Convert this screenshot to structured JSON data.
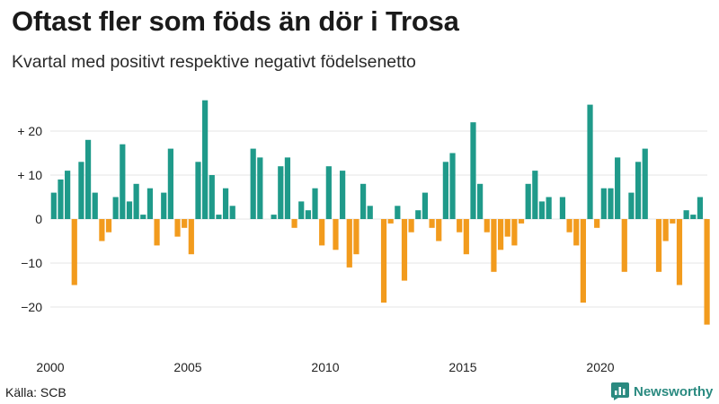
{
  "title": "Oftast fler som föds än dör i Trosa",
  "subtitle": "Kvartal med positivt respektive negativt födelsenetto",
  "source": "Källa: SCB",
  "brand": {
    "name": "Newsworthy",
    "icon": "bar-chart-icon"
  },
  "colors": {
    "positive": "#1f9a8a",
    "negative": "#f29b1d",
    "grid": "#e6e6e6",
    "axis_text": "#222222"
  },
  "chart_data": {
    "type": "bar",
    "title": "Oftast fler som föds än dör i Trosa",
    "subtitle": "Kvartal med positivt respektive negativt födelsenetto",
    "xlabel": "",
    "ylabel": "",
    "start_year": 2000,
    "ylim": [
      -25,
      30
    ],
    "yticks": [
      {
        "value": 20,
        "label": "+ 20"
      },
      {
        "value": 10,
        "label": "+ 10"
      },
      {
        "value": 0,
        "label": "0"
      },
      {
        "value": -10,
        "label": "−10"
      },
      {
        "value": -20,
        "label": "−20"
      }
    ],
    "xticks": [
      {
        "value": 2000,
        "label": "2000"
      },
      {
        "value": 2005,
        "label": "2005"
      },
      {
        "value": 2010,
        "label": "2010"
      },
      {
        "value": 2015,
        "label": "2015"
      },
      {
        "value": 2020,
        "label": "2020"
      }
    ],
    "grid": true,
    "legend": "none",
    "values": [
      6,
      9,
      11,
      -15,
      13,
      18,
      6,
      -5,
      -3,
      5,
      17,
      4,
      8,
      1,
      7,
      -6,
      6,
      16,
      -4,
      -2,
      -8,
      13,
      27,
      10,
      1,
      7,
      3,
      0,
      0,
      16,
      14,
      0,
      1,
      12,
      14,
      -2,
      4,
      2,
      7,
      -6,
      12,
      -7,
      11,
      -11,
      -8,
      8,
      3,
      0,
      -19,
      -1,
      3,
      -14,
      -3,
      2,
      6,
      -2,
      -5,
      13,
      15,
      -3,
      -8,
      22,
      8,
      -3,
      -12,
      -7,
      -4,
      -6,
      -1,
      8,
      11,
      4,
      5,
      0,
      5,
      -3,
      -6,
      -19,
      26,
      -2,
      7,
      7,
      14,
      -12,
      6,
      13,
      16,
      0,
      -12,
      -5,
      -1,
      -15,
      2,
      1,
      5,
      -24
    ]
  }
}
